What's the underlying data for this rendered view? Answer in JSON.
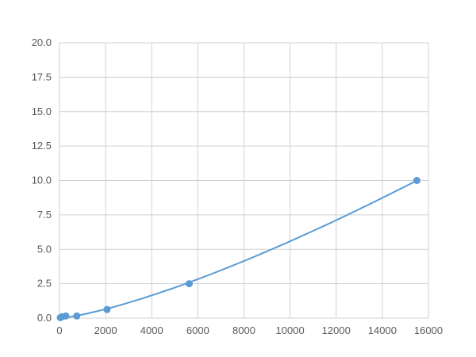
{
  "chart_data": {
    "type": "scatter",
    "title": "",
    "xlabel": "",
    "ylabel": "",
    "xlim": [
      0,
      16000
    ],
    "ylim": [
      0,
      20
    ],
    "xticks": [
      0,
      2000,
      4000,
      6000,
      8000,
      10000,
      12000,
      14000,
      16000
    ],
    "yticks": [
      "0.0",
      "2.5",
      "5.0",
      "7.5",
      "10.0",
      "12.5",
      "15.0",
      "17.5",
      "20.0"
    ],
    "grid": true,
    "smooth_line": true,
    "color": "#5b9bd5",
    "series": [
      {
        "x": [
          36,
          99,
          273,
          750,
          2062,
          5625,
          15500
        ],
        "y": [
          0.039,
          0.098,
          0.156,
          0.156,
          0.625,
          2.5,
          10.0
        ]
      }
    ]
  }
}
